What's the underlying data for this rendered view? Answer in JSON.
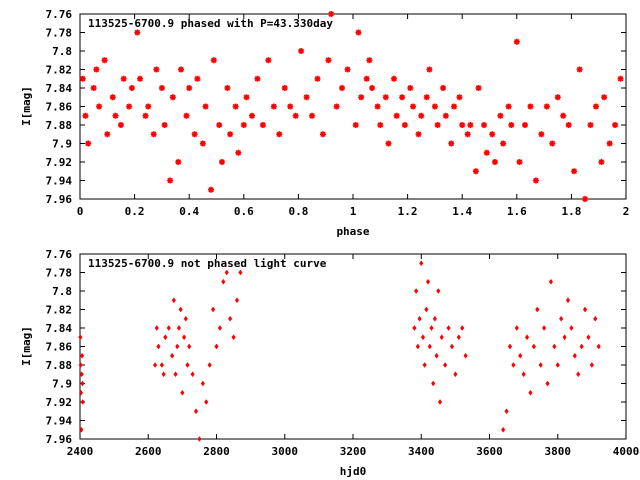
{
  "chart_data": [
    {
      "type": "scatter",
      "title": "113525-6700.9 phased with P=43.330day",
      "xlabel": "phase",
      "ylabel": "I[mag]",
      "xlim": [
        0,
        2
      ],
      "ylim": [
        7.96,
        7.76
      ],
      "y_inverted": true,
      "grid": false,
      "xticks": [
        "0",
        "0.2",
        "0.4",
        "0.6",
        "0.8",
        "1",
        "1.2",
        "1.4",
        "1.6",
        "1.8",
        "2"
      ],
      "yticks": [
        "7.76",
        "7.78",
        "7.8",
        "7.82",
        "7.84",
        "7.86",
        "7.88",
        "7.9",
        "7.92",
        "7.94",
        "7.96"
      ],
      "marker_color": "#ff0000",
      "series": [
        {
          "x": [
            0.01,
            0.02,
            0.03,
            0.05,
            0.06,
            0.07,
            0.09,
            0.1,
            0.12,
            0.13,
            0.15,
            0.16,
            0.18,
            0.19,
            0.21,
            0.22,
            0.24,
            0.25,
            0.27,
            0.28,
            0.3,
            0.31,
            0.33,
            0.34,
            0.36,
            0.37,
            0.39,
            0.4,
            0.42,
            0.43,
            0.45,
            0.46,
            0.48,
            0.49,
            0.51,
            0.52,
            0.54,
            0.55,
            0.57,
            0.58,
            0.6,
            0.61,
            0.63,
            0.65,
            0.67,
            0.69,
            0.71,
            0.73,
            0.75,
            0.77,
            0.79,
            0.81,
            0.83,
            0.85,
            0.87,
            0.89,
            0.91,
            0.92,
            0.94,
            0.96,
            0.98,
            1.01,
            1.02,
            1.03,
            1.05,
            1.06,
            1.07,
            1.09,
            1.1,
            1.12,
            1.13,
            1.15,
            1.16,
            1.18,
            1.19,
            1.21,
            1.22,
            1.24,
            1.25,
            1.27,
            1.28,
            1.3,
            1.31,
            1.33,
            1.34,
            1.36,
            1.37,
            1.39,
            1.4,
            1.42,
            1.43,
            1.45,
            1.46,
            1.48,
            1.49,
            1.51,
            1.52,
            1.54,
            1.55,
            1.57,
            1.58,
            1.6,
            1.61,
            1.63,
            1.65,
            1.67,
            1.69,
            1.71,
            1.73,
            1.75,
            1.77,
            1.79,
            1.81,
            1.83,
            1.85,
            1.87,
            1.89,
            1.91,
            1.92,
            1.94,
            1.96,
            1.98
          ],
          "y": [
            7.83,
            7.87,
            7.9,
            7.84,
            7.82,
            7.86,
            7.81,
            7.89,
            7.85,
            7.87,
            7.88,
            7.83,
            7.86,
            7.84,
            7.78,
            7.83,
            7.87,
            7.86,
            7.89,
            7.82,
            7.84,
            7.88,
            7.94,
            7.85,
            7.92,
            7.82,
            7.87,
            7.84,
            7.89,
            7.83,
            7.9,
            7.86,
            7.95,
            7.81,
            7.88,
            7.92,
            7.84,
            7.89,
            7.86,
            7.91,
            7.88,
            7.85,
            7.87,
            7.83,
            7.88,
            7.81,
            7.86,
            7.89,
            7.84,
            7.86,
            7.87,
            7.8,
            7.85,
            7.87,
            7.83,
            7.89,
            7.81,
            7.76,
            7.86,
            7.84,
            7.82,
            7.88,
            7.78,
            7.85,
            7.83,
            7.81,
            7.84,
            7.86,
            7.88,
            7.85,
            7.9,
            7.83,
            7.87,
            7.85,
            7.88,
            7.84,
            7.86,
            7.89,
            7.87,
            7.85,
            7.82,
            7.86,
            7.88,
            7.84,
            7.87,
            7.9,
            7.86,
            7.85,
            7.88,
            7.89,
            7.88,
            7.93,
            7.84,
            7.88,
            7.91,
            7.89,
            7.92,
            7.87,
            7.9,
            7.86,
            7.88,
            7.79,
            7.92,
            7.88,
            7.86,
            7.94,
            7.89,
            7.86,
            7.9,
            7.85,
            7.87,
            7.88,
            7.93,
            7.82,
            7.96,
            7.88,
            7.86,
            7.92,
            7.85,
            7.9,
            7.88,
            7.83
          ]
        }
      ]
    },
    {
      "type": "scatter",
      "title": "113525-6700.9 not phased light curve",
      "xlabel": "hjd0",
      "ylabel": "I[mag]",
      "xlim": [
        2400,
        4000
      ],
      "ylim": [
        7.96,
        7.76
      ],
      "y_inverted": true,
      "grid": false,
      "xticks": [
        "2400",
        "2600",
        "2800",
        "3000",
        "3200",
        "3400",
        "3600",
        "3800",
        "4000"
      ],
      "yticks": [
        "7.76",
        "7.78",
        "7.8",
        "7.82",
        "7.84",
        "7.86",
        "7.88",
        "7.9",
        "7.92",
        "7.94",
        "7.96"
      ],
      "marker_color": "#ff0000",
      "series": [
        {
          "x": [
            2401,
            2402,
            2403,
            2404,
            2405,
            2406,
            2407,
            2408,
            2620,
            2625,
            2630,
            2640,
            2645,
            2650,
            2660,
            2670,
            2675,
            2680,
            2685,
            2690,
            2695,
            2700,
            2705,
            2710,
            2715,
            2720,
            2730,
            2740,
            2750,
            2760,
            2770,
            2780,
            2790,
            2800,
            2810,
            2820,
            2830,
            2840,
            2850,
            2860,
            2870,
            3380,
            3385,
            3390,
            3395,
            3400,
            3405,
            3410,
            3415,
            3420,
            3425,
            3430,
            3435,
            3440,
            3445,
            3450,
            3455,
            3460,
            3470,
            3480,
            3490,
            3500,
            3510,
            3520,
            3530,
            3640,
            3650,
            3660,
            3670,
            3680,
            3690,
            3700,
            3710,
            3720,
            3730,
            3740,
            3750,
            3760,
            3770,
            3780,
            3790,
            3800,
            3810,
            3820,
            3830,
            3840,
            3850,
            3860,
            3870,
            3880,
            3890,
            3900,
            3910,
            3920
          ],
          "y": [
            7.85,
            7.88,
            7.91,
            7.95,
            7.89,
            7.87,
            7.9,
            7.92,
            7.88,
            7.84,
            7.86,
            7.88,
            7.89,
            7.85,
            7.84,
            7.87,
            7.81,
            7.89,
            7.86,
            7.84,
            7.82,
            7.91,
            7.85,
            7.83,
            7.88,
            7.86,
            7.89,
            7.93,
            7.96,
            7.9,
            7.92,
            7.88,
            7.82,
            7.86,
            7.84,
            7.79,
            7.78,
            7.83,
            7.85,
            7.81,
            7.78,
            7.84,
            7.8,
            7.86,
            7.83,
            7.77,
            7.85,
            7.88,
            7.82,
            7.79,
            7.86,
            7.84,
            7.9,
            7.83,
            7.87,
            7.8,
            7.92,
            7.85,
            7.88,
            7.84,
            7.86,
            7.89,
            7.85,
            7.84,
            7.87,
            7.95,
            7.93,
            7.86,
            7.88,
            7.84,
            7.87,
            7.89,
            7.85,
            7.91,
            7.86,
            7.82,
            7.88,
            7.84,
            7.9,
            7.79,
            7.86,
            7.88,
            7.83,
            7.85,
            7.81,
            7.84,
            7.87,
            7.89,
            7.86,
            7.82,
            7.85,
            7.88,
            7.83,
            7.86
          ]
        }
      ]
    }
  ]
}
